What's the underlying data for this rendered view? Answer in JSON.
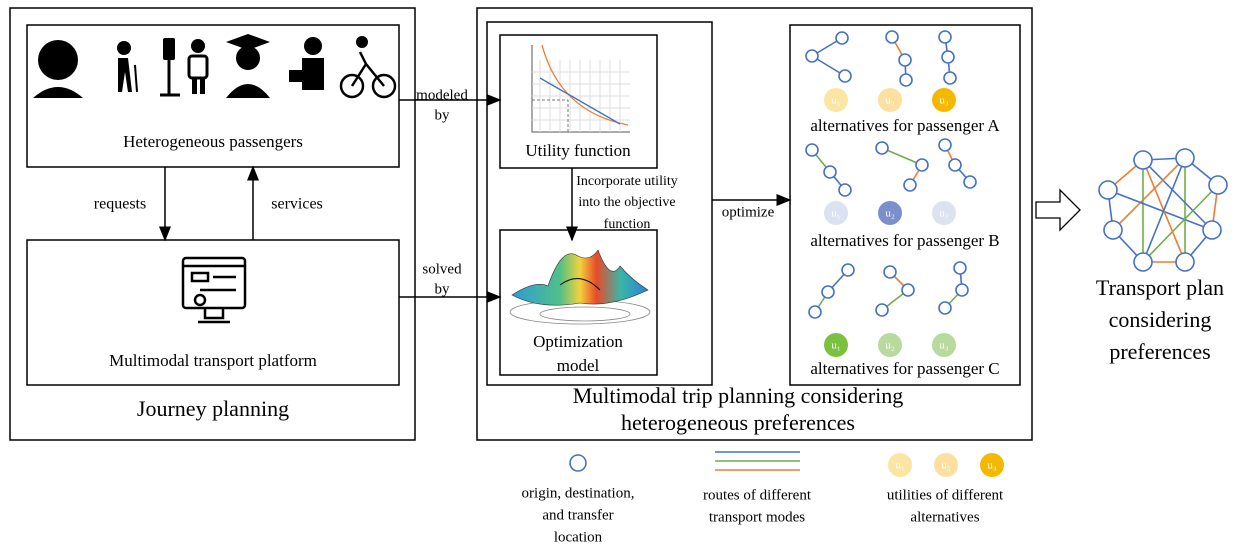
{
  "left_panel": {
    "passengers_label": "Heterogeneous passengers",
    "requests": "requests",
    "services": "services",
    "platform_label": "Multimodal transport platform",
    "title": "Journey planning"
  },
  "connectors": {
    "modeled_by": [
      "modeled",
      "by"
    ],
    "solved_by": [
      "solved",
      "by"
    ],
    "optimize": "optimize"
  },
  "middle_panel": {
    "utility_label": "Utility function",
    "incorporate": [
      "Incorporate utility",
      "into the objective",
      "function"
    ],
    "optimization_label": [
      "Optimization",
      "model"
    ],
    "title": [
      "Multimodal trip planning considering",
      "heterogeneous preferences"
    ]
  },
  "alternatives": [
    {
      "label": "alternatives for passenger A",
      "utilities": [
        "u₁",
        "u₂",
        "u₃"
      ]
    },
    {
      "label": "alternatives for passenger B",
      "utilities": [
        "u₁",
        "u₂",
        "u₃"
      ]
    },
    {
      "label": "alternatives for passenger C",
      "utilities": [
        "u₁",
        "u₂",
        "u₃"
      ]
    }
  ],
  "result": {
    "label": [
      "Transport plan",
      "considering",
      "preferences"
    ]
  },
  "legend": {
    "locations": [
      "origin, destination,",
      "and transfer",
      "location"
    ],
    "routes": [
      "routes of different",
      "transport modes"
    ],
    "utilities": [
      "utilities of different",
      "alternatives"
    ],
    "utility_symbols": [
      "u₁",
      "u₂",
      "u₃"
    ]
  }
}
